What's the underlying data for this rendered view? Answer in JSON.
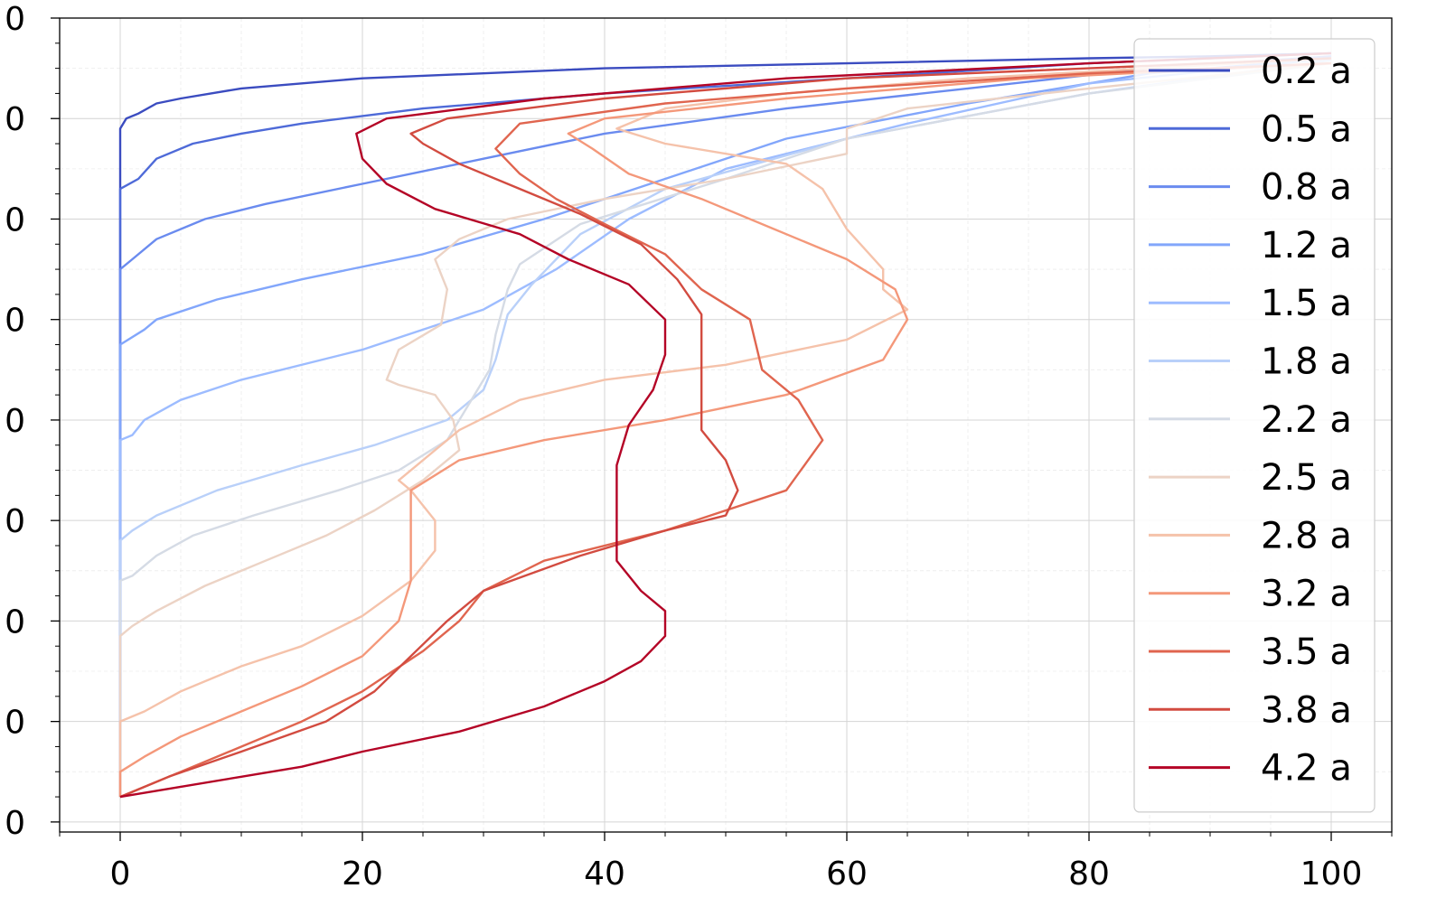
{
  "chart_data": {
    "type": "line",
    "title": "",
    "xlabel": "",
    "ylabel": "",
    "xlim": [
      -5,
      105
    ],
    "ylim": [
      -0.1,
      8.0
    ],
    "x_ticks": [
      0,
      20,
      40,
      60,
      80,
      100
    ],
    "x_tick_labels": [
      "0",
      "20",
      "40",
      "60",
      "80",
      "100"
    ],
    "y_ticks": [
      0,
      1,
      2,
      3,
      4,
      5,
      6,
      7,
      8
    ],
    "y_tick_labels": [
      "0",
      "0",
      "0",
      "0",
      "0",
      "0",
      "0",
      "0",
      "0"
    ],
    "grid": true,
    "legend_position": "top-right",
    "series": [
      {
        "name": "0.2 a",
        "color": "#3b4cc0",
        "points": [
          [
            0,
            0.25
          ],
          [
            0,
            6.9
          ],
          [
            0.5,
            7.0
          ],
          [
            1.5,
            7.05
          ],
          [
            3,
            7.15
          ],
          [
            5,
            7.2
          ],
          [
            10,
            7.3
          ],
          [
            20,
            7.4
          ],
          [
            40,
            7.5
          ],
          [
            60,
            7.55
          ],
          [
            80,
            7.6
          ],
          [
            90,
            7.62
          ],
          [
            100,
            7.65
          ]
        ]
      },
      {
        "name": "0.5 a",
        "color": "#4e6ad8",
        "points": [
          [
            0,
            0.25
          ],
          [
            0,
            6.3
          ],
          [
            1.5,
            6.4
          ],
          [
            3,
            6.6
          ],
          [
            6,
            6.75
          ],
          [
            10,
            6.85
          ],
          [
            15,
            6.95
          ],
          [
            25,
            7.1
          ],
          [
            40,
            7.25
          ],
          [
            60,
            7.4
          ],
          [
            80,
            7.55
          ],
          [
            100,
            7.65
          ]
        ]
      },
      {
        "name": "0.8 a",
        "color": "#6a8bef",
        "points": [
          [
            0,
            0.25
          ],
          [
            0,
            5.5
          ],
          [
            1,
            5.6
          ],
          [
            3,
            5.8
          ],
          [
            7,
            6.0
          ],
          [
            12,
            6.15
          ],
          [
            20,
            6.35
          ],
          [
            30,
            6.6
          ],
          [
            40,
            6.85
          ],
          [
            55,
            7.1
          ],
          [
            70,
            7.3
          ],
          [
            85,
            7.5
          ],
          [
            100,
            7.62
          ]
        ]
      },
      {
        "name": "1.2 a",
        "color": "#82a6fb",
        "points": [
          [
            0,
            0.25
          ],
          [
            0,
            4.75
          ],
          [
            2,
            4.9
          ],
          [
            3,
            5.0
          ],
          [
            8,
            5.2
          ],
          [
            15,
            5.4
          ],
          [
            25,
            5.65
          ],
          [
            35,
            6.0
          ],
          [
            45,
            6.4
          ],
          [
            55,
            6.8
          ],
          [
            70,
            7.15
          ],
          [
            85,
            7.45
          ],
          [
            100,
            7.6
          ]
        ]
      },
      {
        "name": "1.5 a",
        "color": "#9dbcff",
        "points": [
          [
            0,
            0.25
          ],
          [
            0,
            3.8
          ],
          [
            1,
            3.85
          ],
          [
            2,
            4.0
          ],
          [
            5,
            4.2
          ],
          [
            10,
            4.4
          ],
          [
            20,
            4.7
          ],
          [
            30,
            5.1
          ],
          [
            36,
            5.5
          ],
          [
            42,
            6.0
          ],
          [
            50,
            6.5
          ],
          [
            65,
            6.95
          ],
          [
            80,
            7.35
          ],
          [
            100,
            7.6
          ]
        ]
      },
      {
        "name": "1.8 a",
        "color": "#b9d0f9",
        "points": [
          [
            0,
            0.25
          ],
          [
            0,
            2.8
          ],
          [
            1,
            2.9
          ],
          [
            3,
            3.05
          ],
          [
            8,
            3.3
          ],
          [
            15,
            3.55
          ],
          [
            21,
            3.75
          ],
          [
            27,
            4.0
          ],
          [
            30,
            4.3
          ],
          [
            31,
            4.6
          ],
          [
            32,
            5.05
          ],
          [
            34,
            5.35
          ],
          [
            38,
            5.85
          ],
          [
            45,
            6.3
          ],
          [
            60,
            6.8
          ],
          [
            80,
            7.25
          ],
          [
            100,
            7.58
          ]
        ]
      },
      {
        "name": "2.2 a",
        "color": "#d5dbe5",
        "points": [
          [
            0,
            0.25
          ],
          [
            0,
            2.4
          ],
          [
            1,
            2.45
          ],
          [
            3,
            2.65
          ],
          [
            6,
            2.85
          ],
          [
            11,
            3.05
          ],
          [
            18,
            3.3
          ],
          [
            23,
            3.5
          ],
          [
            27,
            3.8
          ],
          [
            29,
            4.2
          ],
          [
            30.5,
            4.5
          ],
          [
            31,
            4.85
          ],
          [
            32,
            5.3
          ],
          [
            33,
            5.55
          ],
          [
            38,
            5.95
          ],
          [
            50,
            6.4
          ],
          [
            60,
            6.8
          ],
          [
            80,
            7.25
          ],
          [
            100,
            7.55
          ]
        ]
      },
      {
        "name": "2.5 a",
        "color": "#ecd3c5",
        "points": [
          [
            0,
            0.25
          ],
          [
            0,
            1.85
          ],
          [
            1,
            1.95
          ],
          [
            3,
            2.1
          ],
          [
            7,
            2.35
          ],
          [
            12,
            2.6
          ],
          [
            17,
            2.85
          ],
          [
            21,
            3.1
          ],
          [
            25,
            3.4
          ],
          [
            28,
            3.7
          ],
          [
            27.5,
            4.0
          ],
          [
            26,
            4.25
          ],
          [
            23,
            4.35
          ],
          [
            22,
            4.4
          ],
          [
            23,
            4.7
          ],
          [
            26.5,
            4.95
          ],
          [
            27,
            5.3
          ],
          [
            26,
            5.6
          ],
          [
            28,
            5.8
          ],
          [
            32,
            6.0
          ],
          [
            40,
            6.2
          ],
          [
            50,
            6.4
          ],
          [
            60,
            6.65
          ],
          [
            60,
            6.9
          ],
          [
            65,
            7.1
          ],
          [
            80,
            7.3
          ],
          [
            100,
            7.55
          ]
        ]
      },
      {
        "name": "2.8 a",
        "color": "#f5c2aa",
        "points": [
          [
            0,
            0.25
          ],
          [
            0,
            1.0
          ],
          [
            2,
            1.1
          ],
          [
            5,
            1.3
          ],
          [
            10,
            1.55
          ],
          [
            15,
            1.75
          ],
          [
            20,
            2.05
          ],
          [
            24,
            2.4
          ],
          [
            26,
            2.7
          ],
          [
            26,
            3.0
          ],
          [
            24,
            3.3
          ],
          [
            23,
            3.4
          ],
          [
            25,
            3.6
          ],
          [
            28,
            3.9
          ],
          [
            33,
            4.2
          ],
          [
            40,
            4.4
          ],
          [
            50,
            4.55
          ],
          [
            60,
            4.8
          ],
          [
            65,
            5.1
          ],
          [
            63,
            5.3
          ],
          [
            63,
            5.5
          ],
          [
            60,
            5.9
          ],
          [
            58,
            6.3
          ],
          [
            55,
            6.55
          ],
          [
            45,
            6.75
          ],
          [
            41,
            6.9
          ],
          [
            45,
            7.1
          ],
          [
            55,
            7.25
          ],
          [
            70,
            7.4
          ],
          [
            85,
            7.5
          ],
          [
            100,
            7.6
          ]
        ]
      },
      {
        "name": "3.2 a",
        "color": "#f4987a",
        "points": [
          [
            0,
            0.25
          ],
          [
            0,
            0.5
          ],
          [
            2,
            0.65
          ],
          [
            5,
            0.85
          ],
          [
            10,
            1.1
          ],
          [
            15,
            1.35
          ],
          [
            20,
            1.65
          ],
          [
            23,
            2.0
          ],
          [
            24,
            2.4
          ],
          [
            24,
            2.8
          ],
          [
            24,
            3.3
          ],
          [
            28,
            3.6
          ],
          [
            35,
            3.8
          ],
          [
            45,
            4.0
          ],
          [
            55,
            4.25
          ],
          [
            63,
            4.6
          ],
          [
            65,
            5.0
          ],
          [
            64,
            5.3
          ],
          [
            60,
            5.6
          ],
          [
            55,
            5.85
          ],
          [
            48,
            6.2
          ],
          [
            42,
            6.45
          ],
          [
            39,
            6.7
          ],
          [
            37,
            6.85
          ],
          [
            40,
            7.0
          ],
          [
            55,
            7.2
          ],
          [
            75,
            7.4
          ],
          [
            100,
            7.55
          ]
        ]
      },
      {
        "name": "3.5 a",
        "color": "#e0654f",
        "points": [
          [
            0,
            0.25
          ],
          [
            5,
            0.5
          ],
          [
            10,
            0.75
          ],
          [
            15,
            1.0
          ],
          [
            20,
            1.3
          ],
          [
            25,
            1.7
          ],
          [
            28,
            2.0
          ],
          [
            30,
            2.3
          ],
          [
            35,
            2.6
          ],
          [
            45,
            2.9
          ],
          [
            55,
            3.3
          ],
          [
            58,
            3.8
          ],
          [
            56,
            4.2
          ],
          [
            53,
            4.5
          ],
          [
            52,
            5.0
          ],
          [
            48,
            5.3
          ],
          [
            45,
            5.65
          ],
          [
            40,
            5.95
          ],
          [
            36,
            6.2
          ],
          [
            33,
            6.45
          ],
          [
            31,
            6.7
          ],
          [
            33,
            6.95
          ],
          [
            45,
            7.15
          ],
          [
            60,
            7.3
          ],
          [
            80,
            7.45
          ],
          [
            100,
            7.55
          ]
        ]
      },
      {
        "name": "3.8 a",
        "color": "#d24b40",
        "points": [
          [
            0,
            0.25
          ],
          [
            4,
            0.45
          ],
          [
            10,
            0.7
          ],
          [
            17,
            1.0
          ],
          [
            21,
            1.3
          ],
          [
            24,
            1.65
          ],
          [
            27,
            2.0
          ],
          [
            30,
            2.3
          ],
          [
            38,
            2.65
          ],
          [
            45,
            2.9
          ],
          [
            50,
            3.05
          ],
          [
            51,
            3.3
          ],
          [
            50,
            3.6
          ],
          [
            48,
            3.9
          ],
          [
            48,
            4.2
          ],
          [
            48,
            4.5
          ],
          [
            48,
            5.05
          ],
          [
            46,
            5.4
          ],
          [
            43,
            5.75
          ],
          [
            38,
            6.05
          ],
          [
            33,
            6.3
          ],
          [
            28,
            6.55
          ],
          [
            25,
            6.75
          ],
          [
            24,
            6.85
          ],
          [
            27,
            7.0
          ],
          [
            40,
            7.2
          ],
          [
            60,
            7.4
          ],
          [
            80,
            7.5
          ],
          [
            100,
            7.6
          ]
        ]
      },
      {
        "name": "4.2 a",
        "color": "#b40426",
        "points": [
          [
            0,
            0.25
          ],
          [
            5,
            0.35
          ],
          [
            10,
            0.45
          ],
          [
            15,
            0.55
          ],
          [
            20,
            0.7
          ],
          [
            28,
            0.9
          ],
          [
            35,
            1.15
          ],
          [
            40,
            1.4
          ],
          [
            43,
            1.6
          ],
          [
            45,
            1.85
          ],
          [
            45,
            2.1
          ],
          [
            43,
            2.3
          ],
          [
            41,
            2.6
          ],
          [
            41,
            2.9
          ],
          [
            41,
            3.2
          ],
          [
            41,
            3.55
          ],
          [
            42,
            3.95
          ],
          [
            44,
            4.3
          ],
          [
            45,
            4.65
          ],
          [
            45,
            5.0
          ],
          [
            42,
            5.35
          ],
          [
            37,
            5.6
          ],
          [
            33,
            5.85
          ],
          [
            26,
            6.1
          ],
          [
            22,
            6.35
          ],
          [
            20,
            6.6
          ],
          [
            19.5,
            6.85
          ],
          [
            22,
            7.0
          ],
          [
            35,
            7.2
          ],
          [
            55,
            7.4
          ],
          [
            80,
            7.55
          ],
          [
            100,
            7.65
          ]
        ]
      }
    ]
  }
}
